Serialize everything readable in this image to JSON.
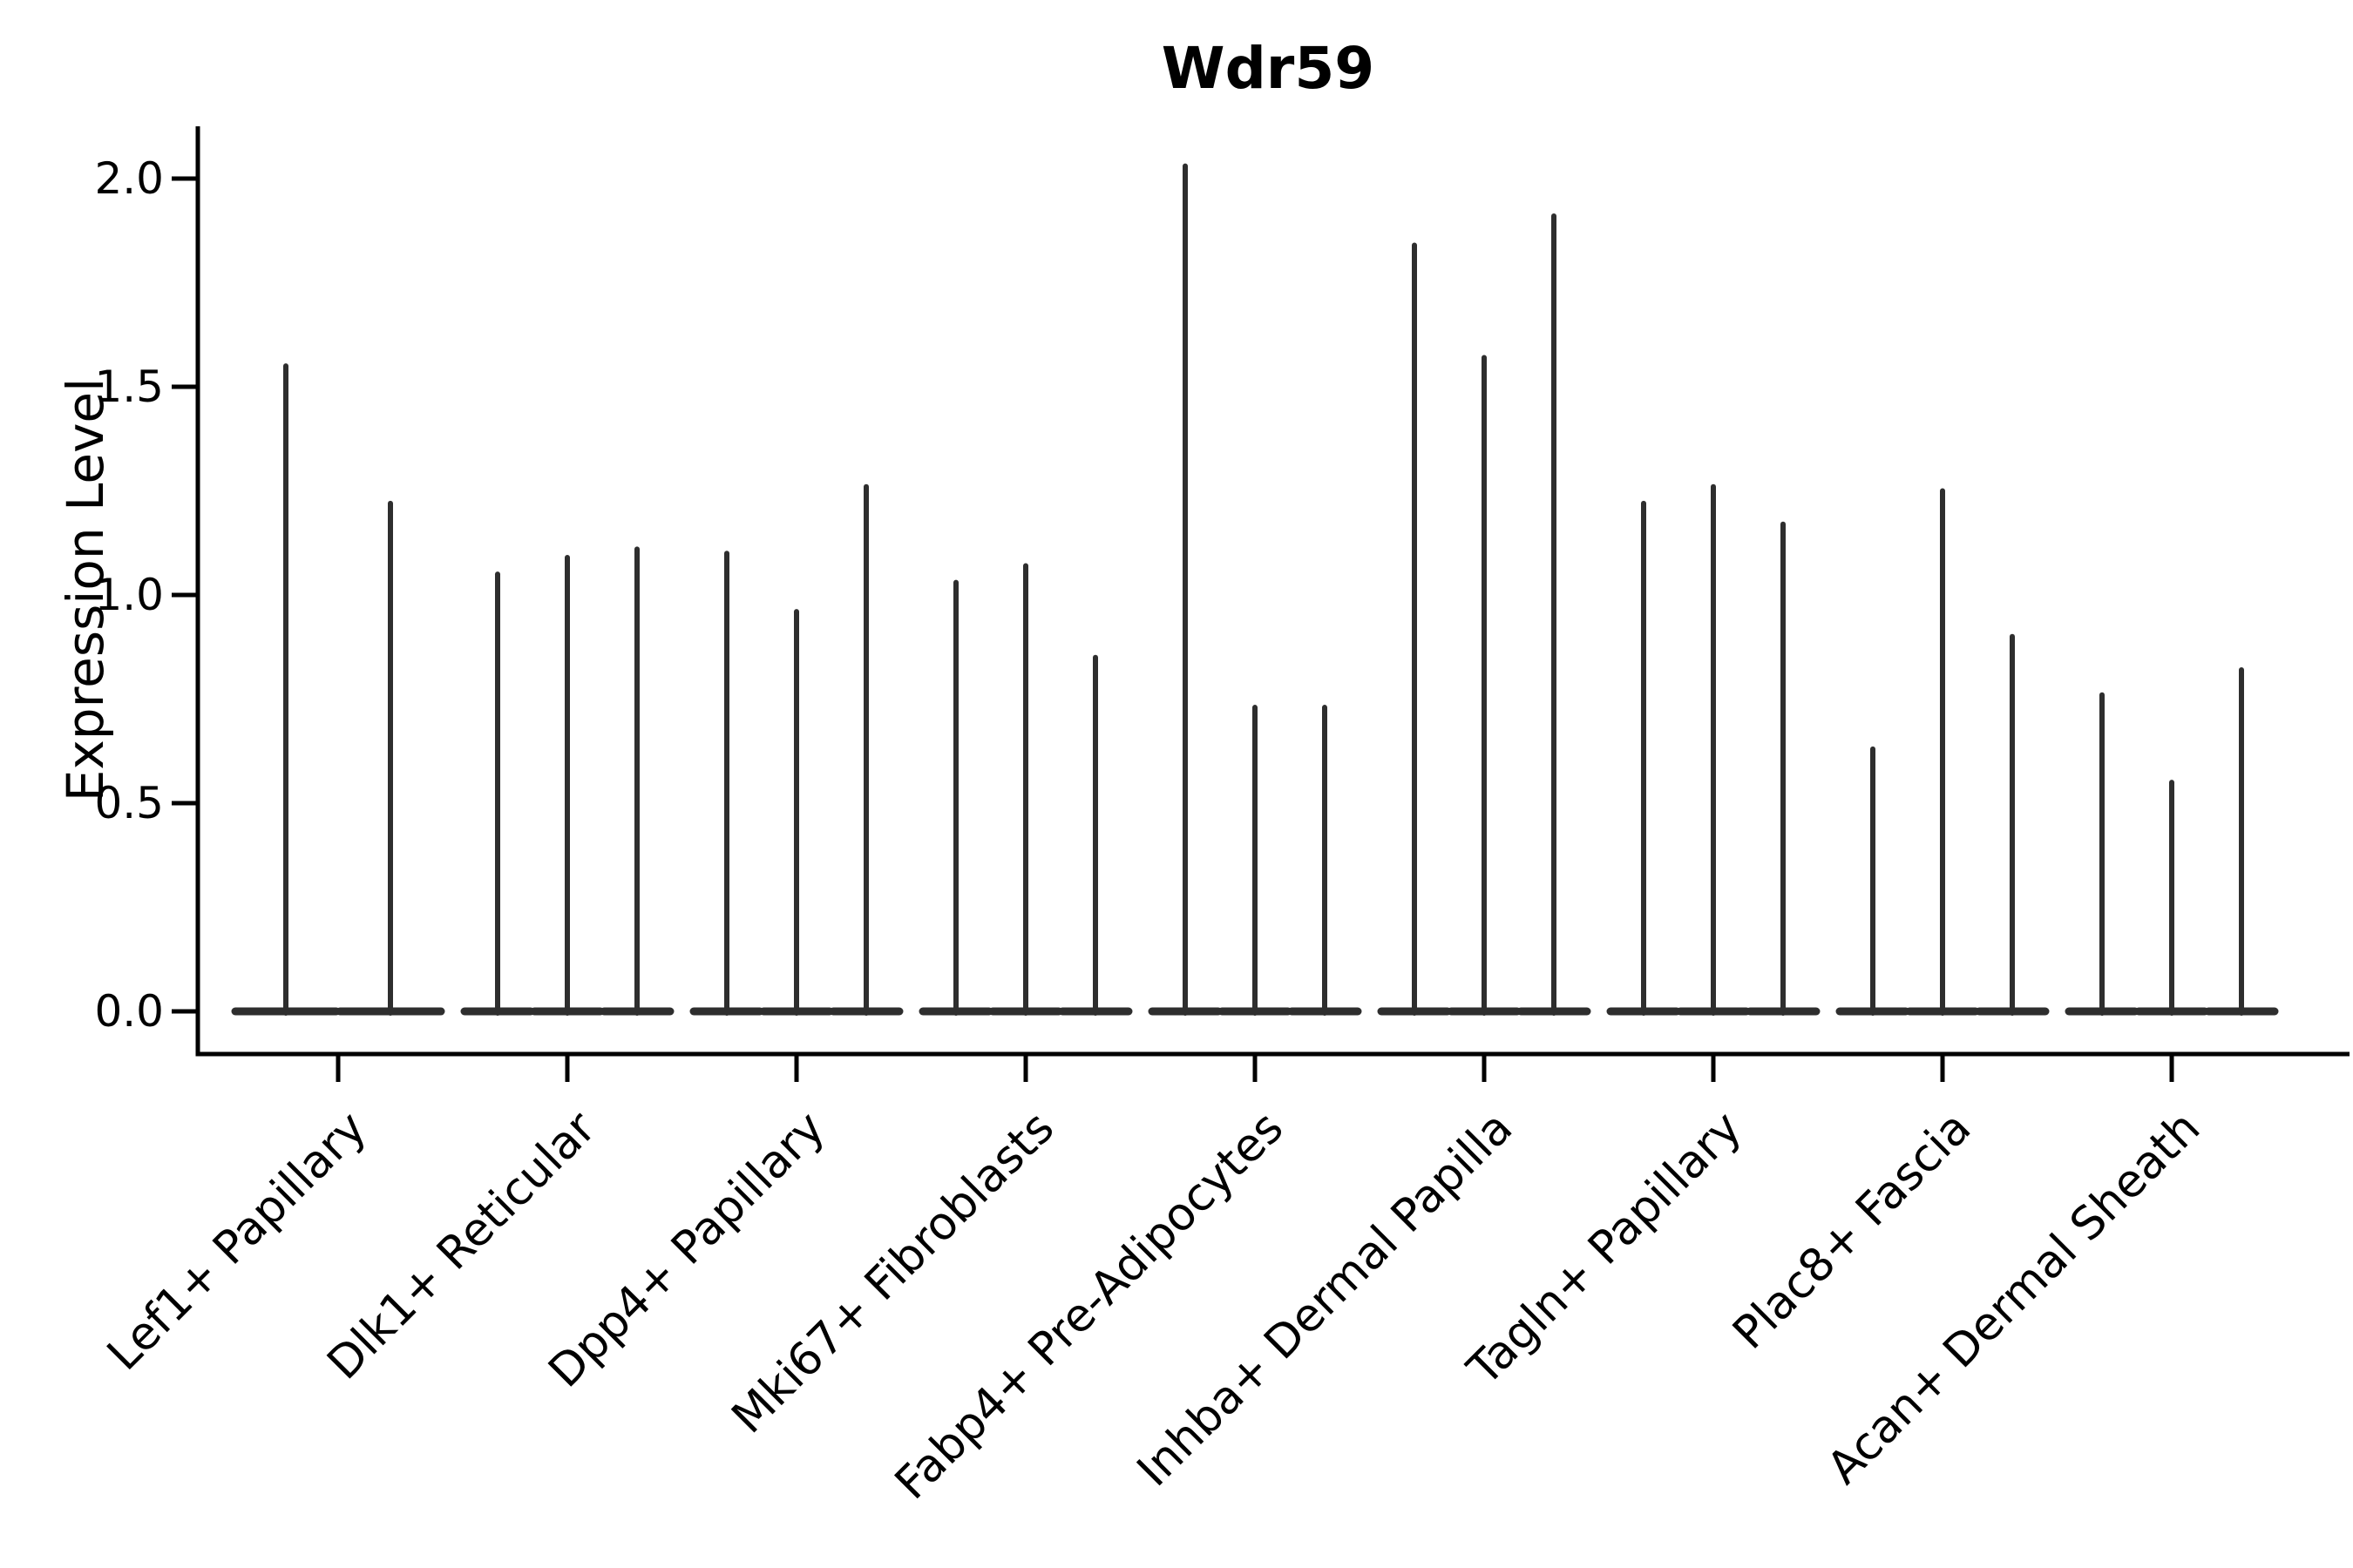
{
  "title": "Wdr59",
  "chart_data": {
    "type": "violin",
    "title": "Wdr59",
    "xlabel": "",
    "ylabel": "Expression Level",
    "grid": false,
    "legend": null,
    "background": "#ffffff",
    "axis_color": "#000000",
    "violin_color": "#2e2e2e",
    "ylim": [
      -0.105,
      2.125
    ],
    "ytick_values": [
      0.0,
      0.5,
      1.0,
      1.5,
      2.0
    ],
    "yticks": [
      "0.0",
      "0.5",
      "1.0",
      "1.5",
      "2.0"
    ],
    "categories": [
      "Lef1+ Papillary",
      "Dlk1+ Reticular",
      "Dpp4+ Papillary",
      "Mki67+ Fibroblasts",
      "Fabp4+ Pre-Adipocytes",
      "Inhba+ Dermal Papilla",
      "Tagln+ Papillary",
      "Plac8+ Fascia",
      "Acan+ Dermal Sheath"
    ],
    "series": [
      {
        "category": "Lef1+ Papillary",
        "violin_peaks": [
          1.55,
          1.22
        ]
      },
      {
        "category": "Dlk1+ Reticular",
        "violin_peaks": [
          1.05,
          1.09,
          1.11
        ]
      },
      {
        "category": "Dpp4+ Papillary",
        "violin_peaks": [
          1.1,
          0.96,
          1.26
        ]
      },
      {
        "category": "Mki67+ Fibroblasts",
        "violin_peaks": [
          1.03,
          1.07,
          0.85
        ]
      },
      {
        "category": "Fabp4+ Pre-Adipocytes",
        "violin_peaks": [
          2.03,
          0.73,
          0.73
        ]
      },
      {
        "category": "Inhba+ Dermal Papilla",
        "violin_peaks": [
          1.84,
          1.57,
          1.91
        ]
      },
      {
        "category": "Tagln+ Papillary",
        "violin_peaks": [
          1.22,
          1.26,
          1.17
        ]
      },
      {
        "category": "Plac8+ Fascia",
        "violin_peaks": [
          0.63,
          1.25,
          0.9
        ]
      },
      {
        "category": "Acan+ Dermal Sheath",
        "violin_peaks": [
          0.76,
          0.55,
          0.82
        ]
      }
    ],
    "violin_baseline_value": 0.0,
    "note": "Each violin is an extremely thin spike rising from a wide flat base at expression 0; violin_peaks give the max expression height of each spike per cluster."
  }
}
